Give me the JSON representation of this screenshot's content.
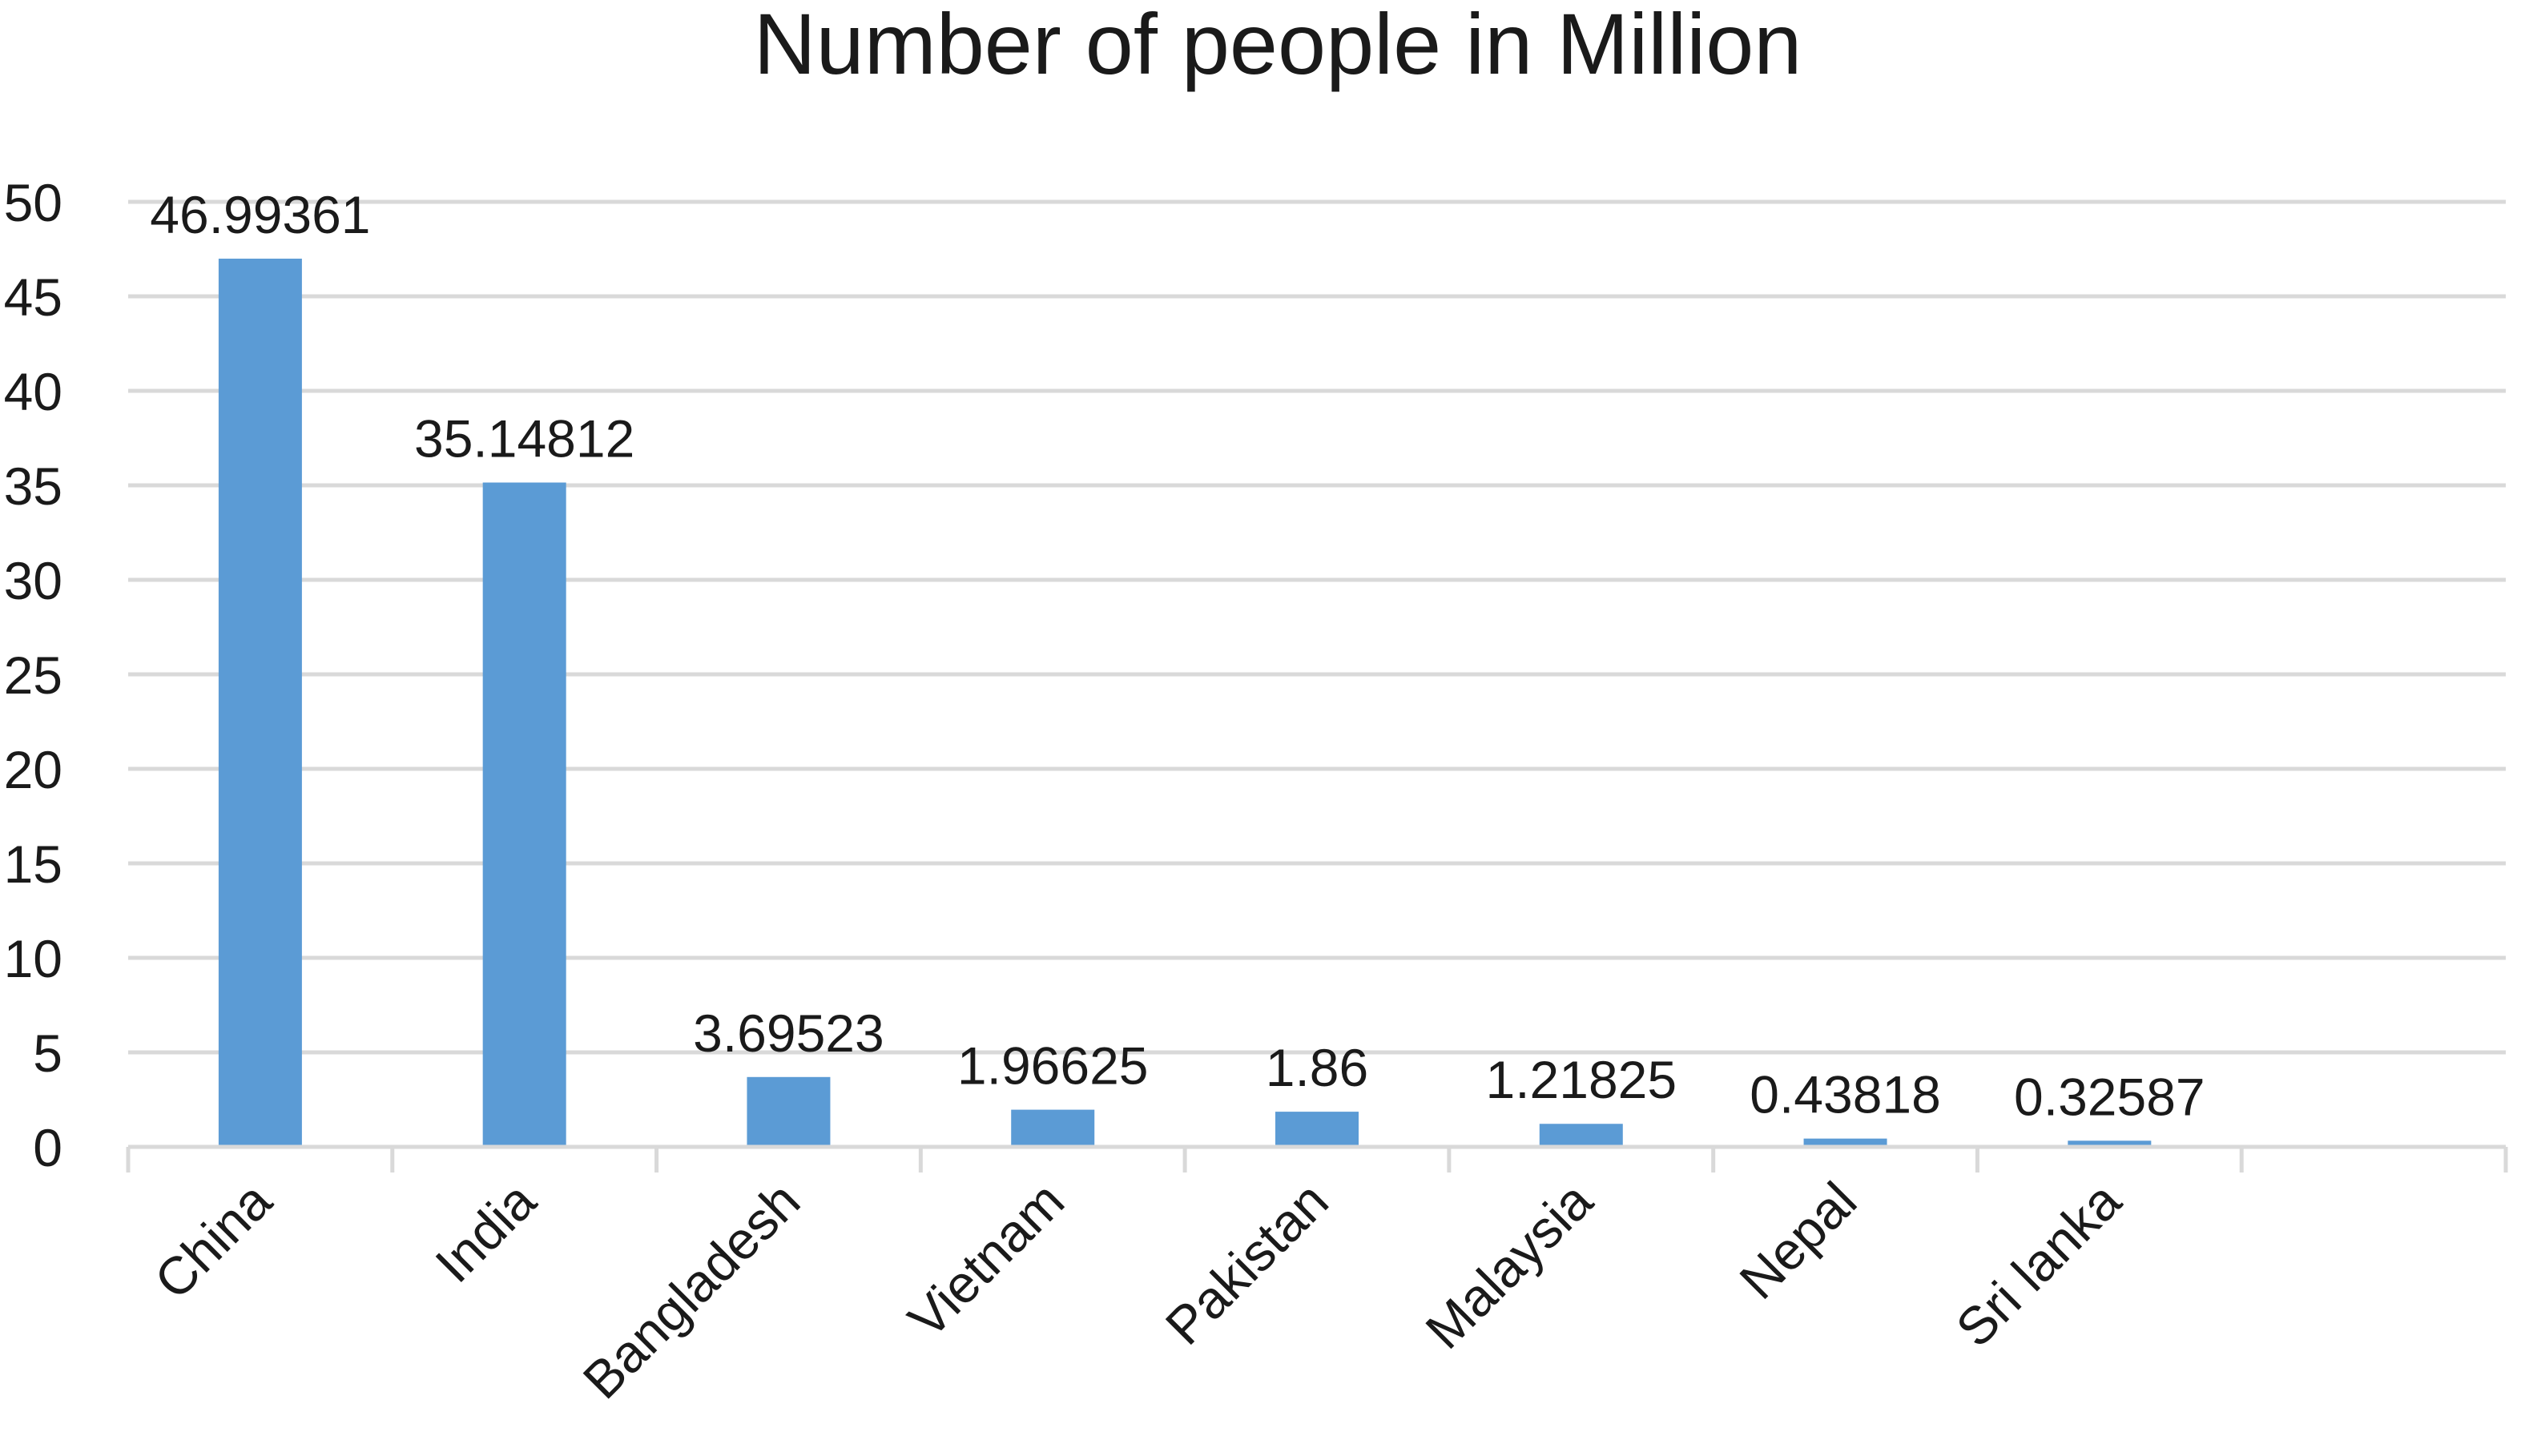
{
  "chart_data": {
    "type": "bar",
    "title": "Number of people in Million",
    "xlabel": "",
    "ylabel": "",
    "categories": [
      "China",
      "India",
      "Bangladesh",
      "Vietnam",
      "Pakistan",
      "Malaysia",
      "Nepal",
      "Sri lanka",
      ""
    ],
    "values": [
      46.99361,
      35.14812,
      3.69523,
      1.96625,
      1.86,
      1.21825,
      0.43818,
      0.32587,
      null
    ],
    "data_labels": [
      "46.99361",
      "35.14812",
      "3.69523",
      "1.96625",
      "1.86",
      "1.21825",
      "0.43818",
      "0.32587",
      ""
    ],
    "ylim": [
      0,
      50
    ],
    "yticks": [
      0,
      5,
      10,
      15,
      20,
      25,
      30,
      35,
      40,
      45,
      50
    ],
    "grid": true,
    "legend": "none",
    "colors": {
      "bar": "#5b9bd5",
      "grid": "#d9d9d9",
      "text": "#1a1a1a"
    }
  }
}
